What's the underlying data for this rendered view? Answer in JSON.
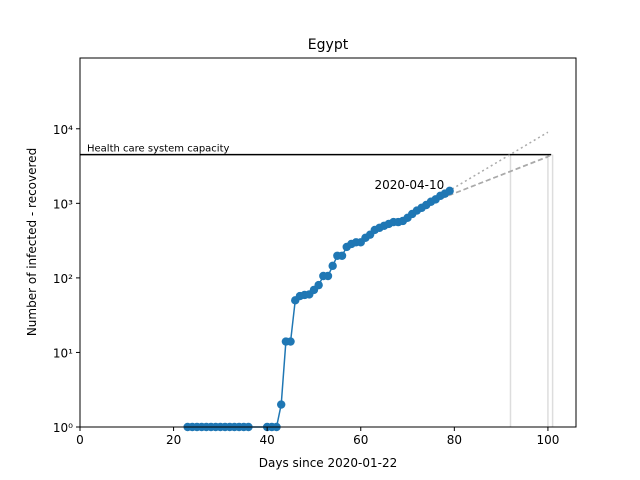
{
  "chart_data": {
    "type": "line",
    "title": "Egypt",
    "xlabel": "Days since 2020-01-22",
    "ylabel": "Number of infected - recovered",
    "xlim": [
      0,
      106
    ],
    "xticks": [
      0,
      20,
      40,
      60,
      80,
      100
    ],
    "ylim": [
      1,
      89000
    ],
    "log_y": true,
    "yticks": [
      {
        "value": 1,
        "label": "10⁰"
      },
      {
        "value": 10,
        "label": "10¹"
      },
      {
        "value": 100,
        "label": "10²"
      },
      {
        "value": 1000,
        "label": "10³"
      },
      {
        "value": 10000,
        "label": "10⁴"
      }
    ],
    "series": [
      {
        "color": "#1f77b4",
        "marker": true,
        "dash": "solid",
        "x": [
          23,
          24,
          25,
          26,
          27,
          28,
          29,
          30,
          31,
          32,
          33,
          34,
          35,
          36,
          40,
          41,
          42,
          43,
          44,
          45,
          46,
          47,
          48,
          49,
          50,
          51,
          52,
          53,
          54,
          55,
          56,
          57,
          58,
          59,
          60,
          61,
          62,
          63,
          64,
          65,
          66,
          67,
          68,
          69,
          70,
          71,
          72,
          73,
          74,
          75,
          76,
          77,
          78,
          79
        ],
        "values": [
          1,
          1,
          1,
          1,
          1,
          1,
          1,
          1,
          1,
          1,
          1,
          1,
          1,
          1,
          1,
          1,
          1,
          2,
          14,
          14,
          50,
          57,
          59,
          60,
          69,
          80,
          106,
          106,
          145,
          198,
          198,
          260,
          285,
          300,
          300,
          345,
          380,
          440,
          470,
          500,
          530,
          560,
          560,
          580,
          640,
          720,
          800,
          870,
          950,
          1050,
          1130,
          1260,
          1350,
          1470
        ]
      },
      {
        "color": "#aaaaaa",
        "marker": false,
        "dash": "dotted",
        "x": [
          74,
          100
        ],
        "values": [
          970,
          9000
        ]
      },
      {
        "color": "#aaaaaa",
        "marker": false,
        "dash": "dashed",
        "x": [
          74,
          101
        ],
        "values": [
          970,
          4500
        ]
      },
      {
        "color": "#aaaaaa",
        "marker": false,
        "dash": "dashed",
        "x": [
          74,
          100
        ],
        "values": [
          970,
          4200
        ]
      }
    ],
    "hline": {
      "value": 4500,
      "x": [
        0,
        100.7
      ],
      "label": "Health care system capacity",
      "color": "#000000"
    },
    "vlines": {
      "x": [
        92,
        100,
        101
      ],
      "color": "#dddddd"
    },
    "annotation": {
      "text": "2020-04-10",
      "x": 70.4,
      "y": 1550
    }
  }
}
